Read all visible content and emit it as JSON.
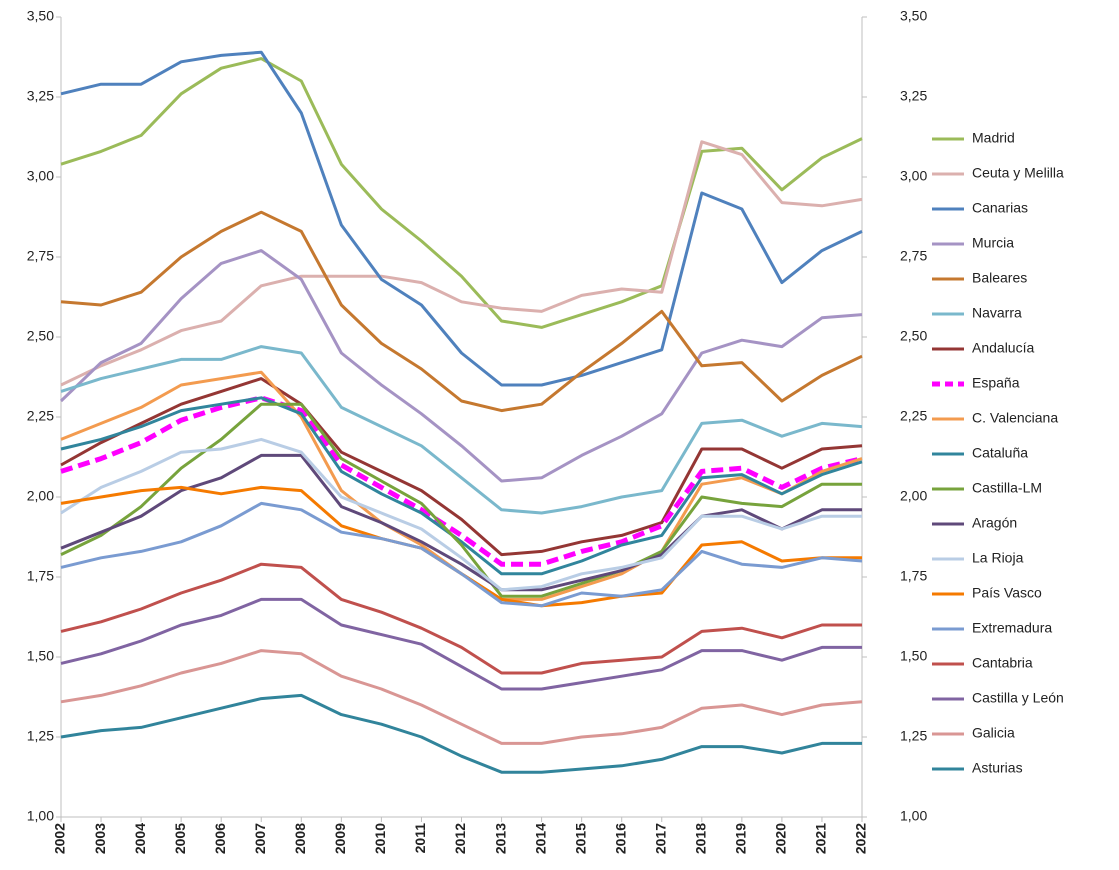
{
  "chart_data": {
    "type": "line",
    "categories": [
      "2002",
      "2003",
      "2004",
      "2005",
      "2006",
      "2007",
      "2008",
      "2009",
      "2010",
      "2011",
      "2012",
      "2013",
      "2014",
      "2015",
      "2016",
      "2017",
      "2018",
      "2019",
      "2020",
      "2021",
      "2022"
    ],
    "ylim": [
      1.0,
      3.5
    ],
    "yticks": [
      {
        "value": 1.0,
        "label": "1,00"
      },
      {
        "value": 1.25,
        "label": "1,25"
      },
      {
        "value": 1.5,
        "label": "1,50"
      },
      {
        "value": 1.75,
        "label": "1,75"
      },
      {
        "value": 2.0,
        "label": "2,00"
      },
      {
        "value": 2.25,
        "label": "2,25"
      },
      {
        "value": 2.5,
        "label": "2,50"
      },
      {
        "value": 2.75,
        "label": "2,75"
      },
      {
        "value": 3.0,
        "label": "3,00"
      },
      {
        "value": 3.25,
        "label": "3,25"
      },
      {
        "value": 3.5,
        "label": "3,50"
      }
    ],
    "y2lim": [
      1.0,
      3.5
    ],
    "y2ticks": [
      {
        "value": 1.0,
        "label": "1,00"
      },
      {
        "value": 1.25,
        "label": "1,25"
      },
      {
        "value": 1.5,
        "label": "1,50"
      },
      {
        "value": 1.75,
        "label": "1,75"
      },
      {
        "value": 2.0,
        "label": "2,00"
      },
      {
        "value": 2.25,
        "label": "2,25"
      },
      {
        "value": 2.5,
        "label": "2,50"
      },
      {
        "value": 2.75,
        "label": "2,75"
      },
      {
        "value": 3.0,
        "label": "3,00"
      },
      {
        "value": 3.25,
        "label": "3,25"
      },
      {
        "value": 3.5,
        "label": "3,50"
      }
    ],
    "grid": false,
    "legend": "right",
    "series": [
      {
        "name": "Madrid",
        "color": "#9bbb59",
        "values": [
          3.04,
          3.08,
          3.13,
          3.26,
          3.34,
          3.37,
          3.3,
          3.04,
          2.9,
          2.8,
          2.69,
          2.55,
          2.53,
          2.57,
          2.61,
          2.66,
          3.08,
          3.09,
          2.96,
          3.06,
          3.12
        ]
      },
      {
        "name": "Ceuta y Melilla",
        "color": "#dbb0ae",
        "values": [
          2.35,
          2.41,
          2.46,
          2.52,
          2.55,
          2.66,
          2.69,
          2.69,
          2.69,
          2.67,
          2.61,
          2.59,
          2.58,
          2.63,
          2.65,
          2.64,
          3.11,
          3.07,
          2.92,
          2.91,
          2.93
        ]
      },
      {
        "name": "Canarias",
        "color": "#4f81bd",
        "values": [
          3.26,
          3.29,
          3.29,
          3.36,
          3.38,
          3.39,
          3.2,
          2.85,
          2.68,
          2.6,
          2.45,
          2.35,
          2.35,
          2.38,
          2.42,
          2.46,
          2.95,
          2.9,
          2.67,
          2.77,
          2.83
        ]
      },
      {
        "name": "Murcia",
        "color": "#a593c4",
        "values": [
          2.3,
          2.42,
          2.48,
          2.62,
          2.73,
          2.77,
          2.68,
          2.45,
          2.35,
          2.26,
          2.16,
          2.05,
          2.06,
          2.13,
          2.19,
          2.26,
          2.45,
          2.49,
          2.47,
          2.56,
          2.57
        ]
      },
      {
        "name": "Baleares",
        "color": "#c5782f",
        "values": [
          2.61,
          2.6,
          2.64,
          2.75,
          2.83,
          2.89,
          2.83,
          2.6,
          2.48,
          2.4,
          2.3,
          2.27,
          2.29,
          2.39,
          2.48,
          2.58,
          2.41,
          2.42,
          2.3,
          2.38,
          2.44
        ]
      },
      {
        "name": "Navarra",
        "color": "#7ab8cc",
        "values": [
          2.33,
          2.37,
          2.4,
          2.43,
          2.43,
          2.47,
          2.45,
          2.28,
          2.22,
          2.16,
          2.06,
          1.96,
          1.95,
          1.97,
          2.0,
          2.02,
          2.23,
          2.24,
          2.19,
          2.23,
          2.22
        ]
      },
      {
        "name": "Andalucía",
        "color": "#943634",
        "values": [
          2.1,
          2.17,
          2.23,
          2.29,
          2.33,
          2.37,
          2.29,
          2.14,
          2.08,
          2.02,
          1.93,
          1.82,
          1.83,
          1.86,
          1.88,
          1.92,
          2.15,
          2.15,
          2.09,
          2.15,
          2.16
        ]
      },
      {
        "name": "España",
        "color": "#ff00ff",
        "dashed": true,
        "values": [
          2.08,
          2.12,
          2.17,
          2.24,
          2.28,
          2.31,
          2.27,
          2.1,
          2.03,
          1.96,
          1.88,
          1.79,
          1.79,
          1.83,
          1.86,
          1.91,
          2.08,
          2.09,
          2.03,
          2.09,
          2.12
        ]
      },
      {
        "name": "C. Valenciana",
        "color": "#f39b4f",
        "values": [
          2.18,
          2.23,
          2.28,
          2.35,
          2.37,
          2.39,
          2.25,
          2.02,
          1.92,
          1.85,
          1.76,
          1.68,
          1.68,
          1.72,
          1.76,
          1.83,
          2.04,
          2.06,
          2.01,
          2.08,
          2.12
        ]
      },
      {
        "name": "Cataluña",
        "color": "#31859c",
        "values": [
          2.15,
          2.18,
          2.22,
          2.27,
          2.29,
          2.31,
          2.26,
          2.08,
          2.01,
          1.95,
          1.86,
          1.76,
          1.76,
          1.8,
          1.85,
          1.88,
          2.06,
          2.07,
          2.01,
          2.07,
          2.11
        ]
      },
      {
        "name": "Castilla-LM",
        "color": "#77a33c",
        "values": [
          1.82,
          1.88,
          1.97,
          2.09,
          2.18,
          2.29,
          2.29,
          2.12,
          2.05,
          1.98,
          1.85,
          1.69,
          1.69,
          1.73,
          1.77,
          1.83,
          2.0,
          1.98,
          1.97,
          2.04,
          2.04
        ]
      },
      {
        "name": "Aragón",
        "color": "#5f497a",
        "values": [
          1.84,
          1.89,
          1.94,
          2.02,
          2.06,
          2.13,
          2.13,
          1.97,
          1.92,
          1.86,
          1.79,
          1.71,
          1.71,
          1.74,
          1.77,
          1.82,
          1.94,
          1.96,
          1.9,
          1.96,
          1.96
        ]
      },
      {
        "name": "La Rioja",
        "color": "#b9cde5",
        "values": [
          1.95,
          2.03,
          2.08,
          2.14,
          2.15,
          2.18,
          2.14,
          2.0,
          1.95,
          1.9,
          1.81,
          1.71,
          1.72,
          1.76,
          1.78,
          1.81,
          1.94,
          1.94,
          1.9,
          1.94,
          1.94
        ]
      },
      {
        "name": "País Vasco",
        "color": "#f57a00",
        "values": [
          1.98,
          2.0,
          2.02,
          2.03,
          2.01,
          2.03,
          2.02,
          1.91,
          1.87,
          1.84,
          1.76,
          1.68,
          1.66,
          1.67,
          1.69,
          1.7,
          1.85,
          1.86,
          1.8,
          1.81,
          1.81
        ]
      },
      {
        "name": "Extremadura",
        "color": "#7a9bd1",
        "values": [
          1.78,
          1.81,
          1.83,
          1.86,
          1.91,
          1.98,
          1.96,
          1.89,
          1.87,
          1.84,
          1.76,
          1.67,
          1.66,
          1.7,
          1.69,
          1.71,
          1.83,
          1.79,
          1.78,
          1.81,
          1.8
        ]
      },
      {
        "name": "Cantabria",
        "color": "#c0504d",
        "values": [
          1.58,
          1.61,
          1.65,
          1.7,
          1.74,
          1.79,
          1.78,
          1.68,
          1.64,
          1.59,
          1.53,
          1.45,
          1.45,
          1.48,
          1.49,
          1.5,
          1.58,
          1.59,
          1.56,
          1.6,
          1.6
        ]
      },
      {
        "name": "Castilla y León",
        "color": "#8064a2",
        "values": [
          1.48,
          1.51,
          1.55,
          1.6,
          1.63,
          1.68,
          1.68,
          1.6,
          1.57,
          1.54,
          1.47,
          1.4,
          1.4,
          1.42,
          1.44,
          1.46,
          1.52,
          1.52,
          1.49,
          1.53,
          1.53
        ]
      },
      {
        "name": "Galicia",
        "color": "#d99694",
        "values": [
          1.36,
          1.38,
          1.41,
          1.45,
          1.48,
          1.52,
          1.51,
          1.44,
          1.4,
          1.35,
          1.29,
          1.23,
          1.23,
          1.25,
          1.26,
          1.28,
          1.34,
          1.35,
          1.32,
          1.35,
          1.36
        ]
      },
      {
        "name": "Asturias",
        "color": "#31849b",
        "values": [
          1.25,
          1.27,
          1.28,
          1.31,
          1.34,
          1.37,
          1.38,
          1.32,
          1.29,
          1.25,
          1.19,
          1.14,
          1.14,
          1.15,
          1.16,
          1.18,
          1.22,
          1.22,
          1.2,
          1.23,
          1.23
        ]
      }
    ]
  }
}
